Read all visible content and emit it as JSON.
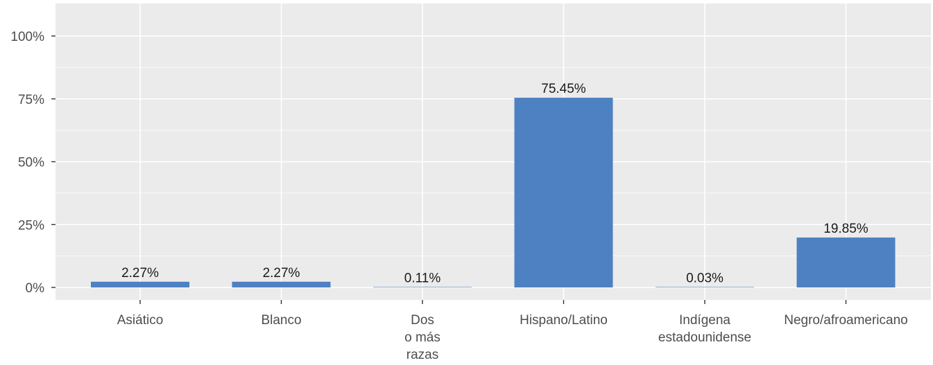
{
  "chart_data": {
    "type": "bar",
    "categories": [
      [
        "Asiático"
      ],
      [
        "Blanco"
      ],
      [
        "Dos",
        "o más",
        "razas"
      ],
      [
        "Hispano/Latino"
      ],
      [
        "Indígena",
        "estadounidense"
      ],
      [
        "Negro/afroamericano"
      ]
    ],
    "values": [
      2.27,
      2.27,
      0.11,
      75.45,
      0.03,
      19.85
    ],
    "data_labels": [
      "2.27%",
      "2.27%",
      "0.11%",
      "75.45%",
      "0.03%",
      "19.85%"
    ],
    "y_ticks": [
      0,
      25,
      50,
      75,
      100
    ],
    "y_tick_labels": [
      "0%",
      "25%",
      "50%",
      "75%",
      "100%"
    ],
    "ylim": [
      0,
      100
    ],
    "title": "",
    "xlabel": "",
    "ylabel": "",
    "grid": true,
    "legend": "none",
    "colors": {
      "bar": "#4e81c2",
      "panel": "#ebebeb",
      "grid_major": "#ffffff",
      "tick_label": "#4d4d4d",
      "data_label": "#1a1a1a"
    }
  }
}
